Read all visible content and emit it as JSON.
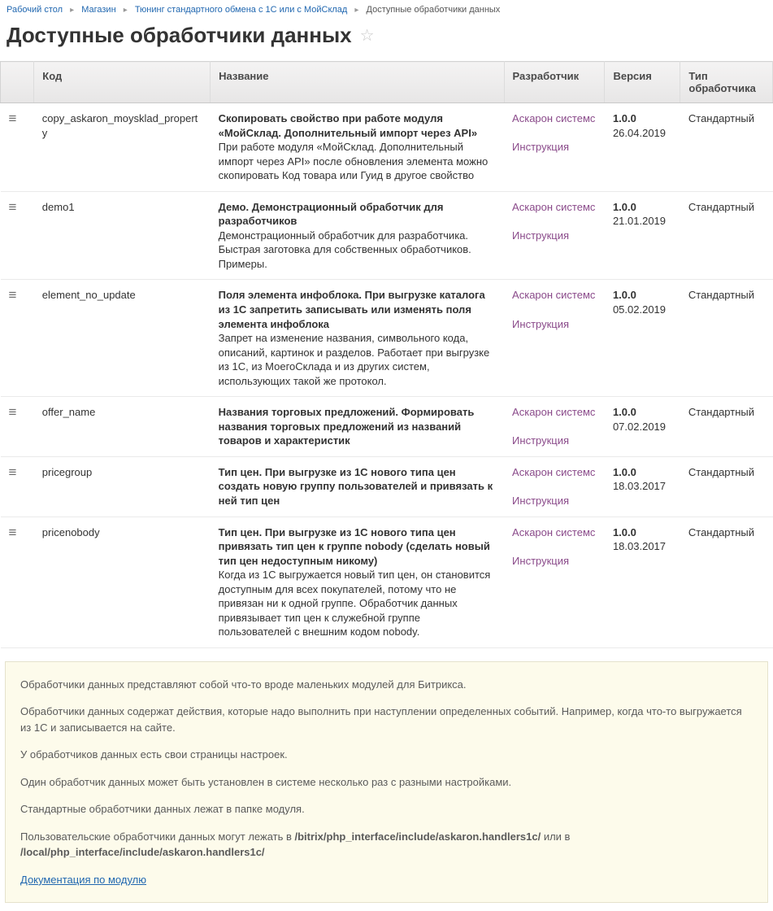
{
  "breadcrumbs": [
    {
      "label": "Рабочий стол",
      "link": true
    },
    {
      "label": "Магазин",
      "link": true
    },
    {
      "label": "Тюнинг стандартного обмена с 1С или с МойСклад",
      "link": true
    },
    {
      "label": "Доступные обработчики данных",
      "link": false
    }
  ],
  "page_title": "Доступные обработчики данных",
  "table": {
    "headers": {
      "code": "Код",
      "name": "Название",
      "developer": "Разработчик",
      "version": "Версия",
      "type": "Тип обработчика"
    },
    "developer_label": "Аскарон системс",
    "instruction_label": "Инструкция",
    "rows": [
      {
        "code": "copy_askaron_moysklad_property",
        "title": "Скопировать свойство при работе модуля «МойСклад. Дополнительный импорт через API»",
        "desc": "При работе модуля «МойСклад. Дополнительный импорт через API» после обновления элемента можно скопировать Код товара или Гуид в другое свойство",
        "version": "1.0.0",
        "date": "26.04.2019",
        "type": "Стандартный"
      },
      {
        "code": "demo1",
        "title": "Демо. Демонстрационный обработчик для разработчиков",
        "desc": "Демонстрационный обработчик для разработчика. Быстрая заготовка для собственных обработчиков. Примеры.",
        "version": "1.0.0",
        "date": "21.01.2019",
        "type": "Стандартный"
      },
      {
        "code": "element_no_update",
        "title": "Поля элемента инфоблока. При выгрузке каталога из 1С запретить записывать или изменять поля элемента инфоблока",
        "desc": "Запрет на изменение названия, символьного кода, описаний, картинок и разделов. Работает при выгрузке из 1С, из МоегоСклада и из других систем, использующих такой же протокол.",
        "version": "1.0.0",
        "date": "05.02.2019",
        "type": "Стандартный"
      },
      {
        "code": "offer_name",
        "title": "Названия торговых предложений. Формировать названия торговых предложений из названий товаров и характеристик",
        "desc": "",
        "version": "1.0.0",
        "date": "07.02.2019",
        "type": "Стандартный"
      },
      {
        "code": "pricegroup",
        "title": "Тип цен. При выгрузке из 1С нового типа цен создать новую группу пользователей и привязать к ней тип цен",
        "desc": "",
        "version": "1.0.0",
        "date": "18.03.2017",
        "type": "Стандартный"
      },
      {
        "code": "pricenobody",
        "title": "Тип цен. При выгрузке из 1С нового типа цен привязать тип цен к группе nobody (сделать новый тип цен недоступным никому)",
        "desc": "Когда из 1С выгружается новый тип цен, он становится доступным для всех покупателей, потому что не привязан ни к одной группе. Обработчик данных привязывает тип цен к служебной группе пользователей с внешним кодом nobody.",
        "version": "1.0.0",
        "date": "18.03.2017",
        "type": "Стандартный"
      }
    ]
  },
  "info": {
    "p1": "Обработчики данных представляют собой что-то вроде маленьких модулей для Битрикса.",
    "p2": "Обработчики данных содержат действия, которые надо выполнить при наступлении определенных событий. Например, когда что-то выгружается из 1С и записывается на сайте.",
    "p3": "У обработчиков данных есть свои страницы настроек.",
    "p4": "Один обработчик данных может быть установлен в системе несколько раз с разными настройками.",
    "p5": "Стандартные обработчики данных лежат в папке модуля.",
    "p6_pre": "Пользовательские обработчики данных могут лежать в ",
    "p6_path1": "/bitrix/php_interface/include/askaron.handlers1c/",
    "p6_mid": " или в ",
    "p6_path2": "/local/php_interface/include/askaron.handlers1c/",
    "doc_link": "Документация по модулю"
  },
  "colors": {
    "link": "#2067b0",
    "visited_link": "#8a4a8a",
    "header_bg_top": "#f4f3f3",
    "header_bg_bot": "#e7e6e6",
    "info_bg": "#fdfbeb",
    "info_border": "#e5e2cc"
  }
}
